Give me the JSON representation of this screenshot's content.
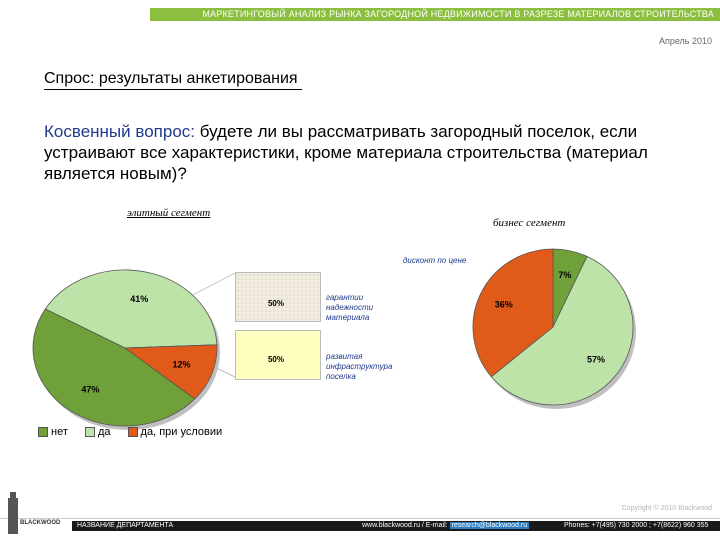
{
  "header": {
    "banner": "МАРКЕТИНГОВЫЙ АНАЛИЗ РЫНКА ЗАГОРОДНОЙ НЕДВИЖИМОСТИ В РАЗРЕЗЕ МАТЕРИАЛОВ СТРОИТЕЛЬСТВА",
    "date": "Апрель 2010"
  },
  "section_title": "Спрос: результаты анкетирования",
  "question": {
    "prefix": "Косвенный вопрос:",
    "text": " будете ли вы рассматривать загородный поселок, если устраивают все характеристики, кроме материала строительства (материал является новым)?"
  },
  "segments": {
    "left": "элитный сегмент",
    "right": "бизнес сегмент"
  },
  "notes": {
    "box1_value": "50%",
    "box1_text": "гарантии надежности материала",
    "box2_value": "50%",
    "box2_text": "развитая инфраструктура поселка",
    "discount": "дисконт по цене"
  },
  "legend": [
    {
      "label": "нет",
      "color": "#6fa03a"
    },
    {
      "label": "да",
      "color": "#bde3a8"
    },
    {
      "label": "да, при условии",
      "color": "#e05a1a"
    }
  ],
  "chart_data": [
    {
      "type": "pie",
      "name": "элитный сегмент",
      "categories": [
        "да",
        "да, при условии",
        "нет"
      ],
      "values": [
        41,
        12,
        47
      ],
      "labels": [
        "41%",
        "12%",
        "47%"
      ],
      "colors": [
        "#bde3a8",
        "#e05a1a",
        "#6fa03a"
      ]
    },
    {
      "type": "pie",
      "name": "бизнес сегмент",
      "categories": [
        "нет",
        "да",
        "да, при условии"
      ],
      "values": [
        7,
        57,
        36
      ],
      "labels": [
        "7%",
        "57%",
        "36%"
      ],
      "colors": [
        "#6fa03a",
        "#bde3a8",
        "#e05a1a"
      ]
    }
  ],
  "footer": {
    "copyright": "Copyright © 2010 Blackwood",
    "department": "НАЗВАНИЕ ДЕПАРТАМЕНТА",
    "site": "www.blackwood.ru / E-mail: ",
    "email": "research@blackwood.ru",
    "phones": "Phones: +7(495) 730 2000 ; +7(8622) 960 355",
    "logo": "BLACKWOOD"
  }
}
